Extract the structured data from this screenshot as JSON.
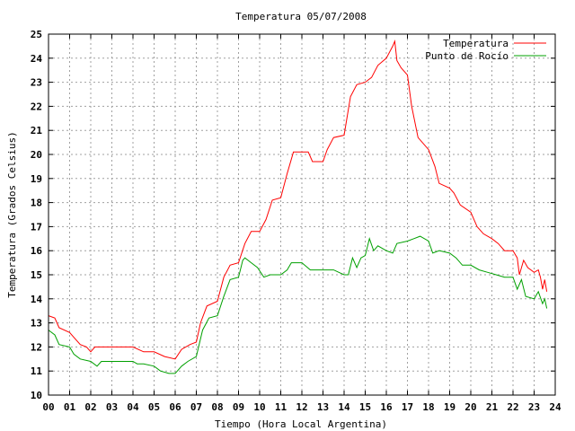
{
  "chart_data": {
    "type": "line",
    "title": "Temperatura 05/07/2008",
    "xlabel": "Tiempo (Hora Local Argentina)",
    "ylabel": "Temperatura (Grados Celsius)",
    "xlim": [
      0,
      24
    ],
    "ylim": [
      10,
      25
    ],
    "x_ticks": [
      "00",
      "01",
      "02",
      "03",
      "04",
      "05",
      "06",
      "07",
      "08",
      "09",
      "10",
      "11",
      "12",
      "13",
      "14",
      "15",
      "16",
      "17",
      "18",
      "19",
      "20",
      "21",
      "22",
      "23",
      "24"
    ],
    "y_ticks": [
      10,
      11,
      12,
      13,
      14,
      15,
      16,
      17,
      18,
      19,
      20,
      21,
      22,
      23,
      24,
      25
    ],
    "grid": true,
    "legend_position": "top-right",
    "series": [
      {
        "name": "Temperatura",
        "color": "#ff0000",
        "points": [
          [
            0.0,
            13.3
          ],
          [
            0.3,
            13.2
          ],
          [
            0.5,
            12.8
          ],
          [
            1.0,
            12.6
          ],
          [
            1.2,
            12.4
          ],
          [
            1.5,
            12.1
          ],
          [
            1.8,
            12.0
          ],
          [
            2.0,
            11.8
          ],
          [
            2.2,
            12.0
          ],
          [
            2.5,
            12.0
          ],
          [
            3.0,
            12.0
          ],
          [
            3.5,
            12.0
          ],
          [
            4.0,
            12.0
          ],
          [
            4.5,
            11.8
          ],
          [
            5.0,
            11.8
          ],
          [
            5.5,
            11.6
          ],
          [
            6.0,
            11.5
          ],
          [
            6.3,
            11.9
          ],
          [
            6.7,
            12.1
          ],
          [
            7.0,
            12.2
          ],
          [
            7.2,
            13.0
          ],
          [
            7.5,
            13.7
          ],
          [
            8.0,
            13.9
          ],
          [
            8.3,
            14.9
          ],
          [
            8.6,
            15.4
          ],
          [
            9.0,
            15.5
          ],
          [
            9.3,
            16.3
          ],
          [
            9.6,
            16.8
          ],
          [
            10.0,
            16.8
          ],
          [
            10.3,
            17.3
          ],
          [
            10.6,
            18.1
          ],
          [
            11.0,
            18.2
          ],
          [
            11.3,
            19.2
          ],
          [
            11.6,
            20.1
          ],
          [
            12.0,
            20.1
          ],
          [
            12.3,
            20.1
          ],
          [
            12.5,
            19.7
          ],
          [
            13.0,
            19.7
          ],
          [
            13.2,
            20.2
          ],
          [
            13.5,
            20.7
          ],
          [
            14.0,
            20.8
          ],
          [
            14.3,
            22.4
          ],
          [
            14.6,
            22.9
          ],
          [
            15.0,
            23.0
          ],
          [
            15.3,
            23.2
          ],
          [
            15.6,
            23.7
          ],
          [
            16.0,
            24.0
          ],
          [
            16.3,
            24.5
          ],
          [
            16.4,
            24.7
          ],
          [
            16.5,
            23.9
          ],
          [
            16.7,
            23.6
          ],
          [
            17.0,
            23.3
          ],
          [
            17.2,
            22.0
          ],
          [
            17.5,
            20.7
          ],
          [
            18.0,
            20.2
          ],
          [
            18.3,
            19.5
          ],
          [
            18.5,
            18.8
          ],
          [
            19.0,
            18.6
          ],
          [
            19.2,
            18.4
          ],
          [
            19.5,
            17.9
          ],
          [
            20.0,
            17.6
          ],
          [
            20.3,
            17.0
          ],
          [
            20.6,
            16.7
          ],
          [
            21.0,
            16.5
          ],
          [
            21.3,
            16.3
          ],
          [
            21.6,
            16.0
          ],
          [
            22.0,
            16.0
          ],
          [
            22.2,
            15.7
          ],
          [
            22.3,
            15.0
          ],
          [
            22.5,
            15.6
          ],
          [
            22.7,
            15.3
          ],
          [
            23.0,
            15.1
          ],
          [
            23.2,
            15.2
          ],
          [
            23.3,
            14.9
          ],
          [
            23.4,
            14.4
          ],
          [
            23.5,
            14.8
          ],
          [
            23.6,
            14.3
          ]
        ]
      },
      {
        "name": "Punto de Rocío",
        "color": "#00a000",
        "points": [
          [
            0.0,
            12.7
          ],
          [
            0.3,
            12.5
          ],
          [
            0.5,
            12.1
          ],
          [
            1.0,
            12.0
          ],
          [
            1.2,
            11.7
          ],
          [
            1.5,
            11.5
          ],
          [
            2.0,
            11.4
          ],
          [
            2.3,
            11.2
          ],
          [
            2.5,
            11.4
          ],
          [
            3.0,
            11.4
          ],
          [
            3.5,
            11.4
          ],
          [
            4.0,
            11.4
          ],
          [
            4.2,
            11.3
          ],
          [
            4.5,
            11.3
          ],
          [
            5.0,
            11.2
          ],
          [
            5.3,
            11.0
          ],
          [
            5.7,
            10.9
          ],
          [
            6.0,
            10.9
          ],
          [
            6.3,
            11.2
          ],
          [
            6.6,
            11.4
          ],
          [
            7.0,
            11.6
          ],
          [
            7.3,
            12.7
          ],
          [
            7.6,
            13.2
          ],
          [
            8.0,
            13.3
          ],
          [
            8.3,
            14.1
          ],
          [
            8.6,
            14.8
          ],
          [
            9.0,
            14.9
          ],
          [
            9.2,
            15.6
          ],
          [
            9.3,
            15.7
          ],
          [
            9.6,
            15.5
          ],
          [
            9.9,
            15.3
          ],
          [
            10.2,
            14.9
          ],
          [
            10.5,
            15.0
          ],
          [
            11.0,
            15.0
          ],
          [
            11.3,
            15.2
          ],
          [
            11.5,
            15.5
          ],
          [
            12.0,
            15.5
          ],
          [
            12.4,
            15.2
          ],
          [
            13.0,
            15.2
          ],
          [
            13.5,
            15.2
          ],
          [
            14.0,
            15.0
          ],
          [
            14.2,
            15.0
          ],
          [
            14.4,
            15.7
          ],
          [
            14.6,
            15.3
          ],
          [
            14.8,
            15.7
          ],
          [
            15.0,
            15.8
          ],
          [
            15.2,
            16.5
          ],
          [
            15.4,
            16.0
          ],
          [
            15.6,
            16.2
          ],
          [
            16.0,
            16.0
          ],
          [
            16.3,
            15.9
          ],
          [
            16.5,
            16.3
          ],
          [
            17.0,
            16.4
          ],
          [
            17.3,
            16.5
          ],
          [
            17.6,
            16.6
          ],
          [
            18.0,
            16.4
          ],
          [
            18.2,
            15.9
          ],
          [
            18.5,
            16.0
          ],
          [
            19.0,
            15.9
          ],
          [
            19.3,
            15.7
          ],
          [
            19.6,
            15.4
          ],
          [
            20.0,
            15.4
          ],
          [
            20.4,
            15.2
          ],
          [
            20.8,
            15.1
          ],
          [
            21.2,
            15.0
          ],
          [
            21.6,
            14.9
          ],
          [
            22.0,
            14.9
          ],
          [
            22.2,
            14.4
          ],
          [
            22.4,
            14.8
          ],
          [
            22.6,
            14.1
          ],
          [
            23.0,
            14.0
          ],
          [
            23.2,
            14.3
          ],
          [
            23.4,
            13.8
          ],
          [
            23.5,
            14.0
          ],
          [
            23.6,
            13.6
          ]
        ]
      }
    ]
  }
}
